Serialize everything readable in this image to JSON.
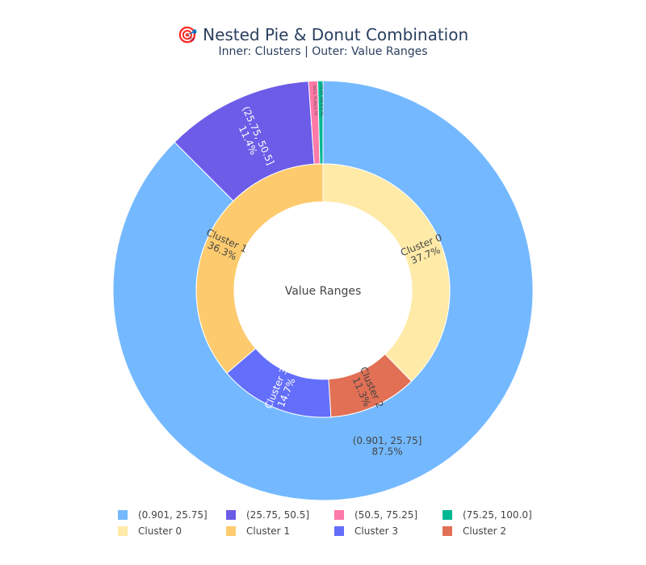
{
  "chart_data": {
    "type": "pie",
    "title": "🎯 Nested Pie & Donut Combination",
    "subtitle": "Inner: Clusters | Outer: Value Ranges",
    "center_label": "Value Ranges",
    "outer": {
      "name": "Value Ranges",
      "slices": [
        {
          "label": "(0.901, 25.75]",
          "value": 87.5,
          "pct_text": "87.5%",
          "color": "#74b9ff",
          "text_color": "#444444"
        },
        {
          "label": "(25.75, 50.5]",
          "value": 11.4,
          "pct_text": "11.4%",
          "color": "#6c5ce7",
          "text_color": "#ffffff"
        },
        {
          "label": "(50.5, 75.25]",
          "value": 0.7,
          "pct_text": "0.7%",
          "color": "#fd79a8",
          "text_color": "#444444"
        },
        {
          "label": "(75.25, 100.0]",
          "value": 0.4,
          "pct_text": "0.4%",
          "color": "#00b894",
          "text_color": "#444444"
        }
      ]
    },
    "inner": {
      "name": "Clusters",
      "slices": [
        {
          "label": "Cluster 0",
          "value": 37.7,
          "pct_text": "37.7%",
          "color": "#ffeaa7",
          "text_color": "#444444"
        },
        {
          "label": "Cluster 2",
          "value": 11.3,
          "pct_text": "11.3%",
          "color": "#e17055",
          "text_color": "#444444"
        },
        {
          "label": "Cluster 3",
          "value": 14.7,
          "pct_text": "14.7%",
          "color": "#636efa",
          "text_color": "#ffffff"
        },
        {
          "label": "Cluster 1",
          "value": 36.3,
          "pct_text": "36.3%",
          "color": "#fdcb6e",
          "text_color": "#444444"
        }
      ]
    },
    "legend": {
      "placement": "bottom",
      "rows": [
        [
          {
            "label": "(0.901, 25.75]",
            "color": "#74b9ff"
          },
          {
            "label": "(25.75, 50.5]",
            "color": "#6c5ce7"
          },
          {
            "label": "(50.5, 75.25]",
            "color": "#fd79a8"
          },
          {
            "label": "(75.25, 100.0]",
            "color": "#00b894"
          }
        ],
        [
          {
            "label": "Cluster 0",
            "color": "#ffeaa7"
          },
          {
            "label": "Cluster 1",
            "color": "#fdcb6e"
          },
          {
            "label": "Cluster 3",
            "color": "#636efa"
          },
          {
            "label": "Cluster 2",
            "color": "#e17055"
          }
        ]
      ]
    }
  }
}
